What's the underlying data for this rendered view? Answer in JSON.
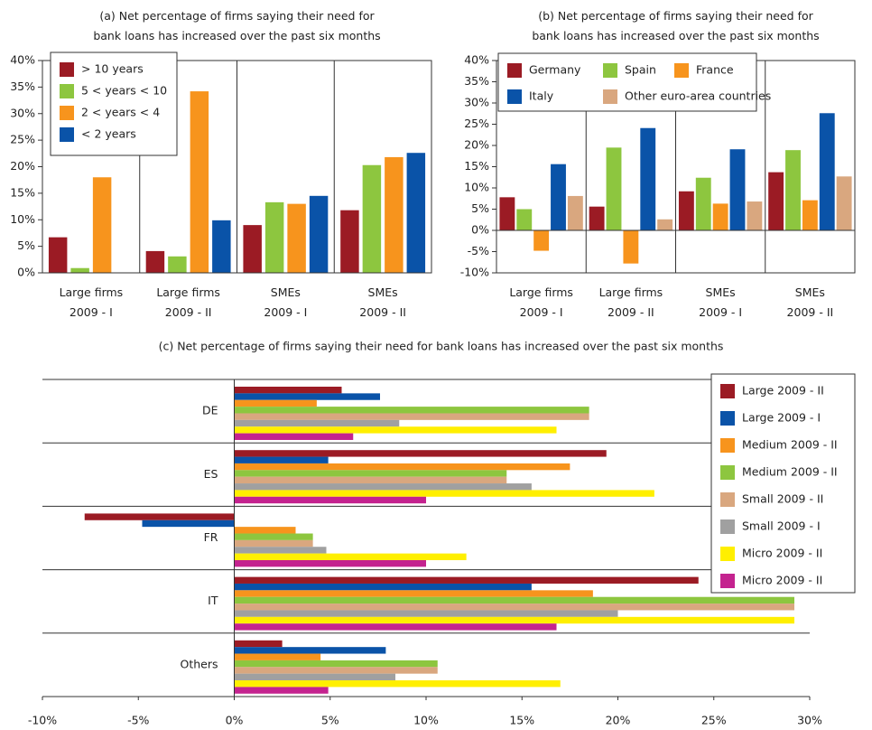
{
  "chart_data": [
    {
      "type": "bar",
      "title": "(a) Net percentage of firms saying their need for\nbank loans has increased over the past six months",
      "categories": [
        "Large firms\n2009 - I",
        "Large firms\n2009 - II",
        "SMEs\n2009 - I",
        "SMEs\n2009 - II"
      ],
      "series": [
        {
          "name": "> 10 years",
          "color": "#9b1b24",
          "values": [
            6.7,
            4.1,
            9.0,
            11.8
          ]
        },
        {
          "name": "5 < years < 10",
          "color": "#8dc63f",
          "values": [
            0.9,
            3.1,
            13.3,
            20.3
          ]
        },
        {
          "name": "2 < years < 4",
          "color": "#f7941d",
          "values": [
            18.0,
            34.2,
            13.0,
            21.8
          ]
        },
        {
          "name": "< 2 years",
          "color": "#0a53a8",
          "values": [
            0,
            9.9,
            14.5,
            22.6
          ]
        }
      ],
      "ylim": [
        0,
        40
      ],
      "yticks": [
        {
          "value": 0,
          "label": "0%"
        },
        {
          "value": 5,
          "label": "5%"
        },
        {
          "value": 10,
          "label": "10%"
        },
        {
          "value": 15,
          "label": "15%"
        },
        {
          "value": 20,
          "label": "20%"
        },
        {
          "value": 25,
          "label": "25%"
        },
        {
          "value": 30,
          "label": "30%"
        },
        {
          "value": 35,
          "label": "35%"
        },
        {
          "value": 40,
          "label": "40%"
        }
      ],
      "legend": "upper left"
    },
    {
      "type": "bar",
      "title": "(b) Net percentage of firms saying their need for\nbank loans has increased over the past six months",
      "categories": [
        "Large firms\n2009 - I",
        "Large firms\n2009 - II",
        "SMEs\n2009 - I",
        "SMEs\n2009 - II"
      ],
      "series": [
        {
          "name": "Germany",
          "color": "#9b1b24",
          "values": [
            7.8,
            5.6,
            9.2,
            13.7
          ]
        },
        {
          "name": "Spain",
          "color": "#8dc63f",
          "values": [
            5.0,
            19.5,
            12.4,
            18.9
          ]
        },
        {
          "name": "France",
          "color": "#f7941d",
          "values": [
            -4.8,
            -7.8,
            6.3,
            7.1
          ]
        },
        {
          "name": "Italy",
          "color": "#0a53a8",
          "values": [
            15.6,
            24.1,
            19.1,
            27.6
          ]
        },
        {
          "name": "Other euro-area countries",
          "color": "#d9a77f",
          "values": [
            8.1,
            2.6,
            6.8,
            12.7
          ]
        }
      ],
      "ylim": [
        -10,
        40
      ],
      "yticks": [
        {
          "value": -10,
          "label": "-10%"
        },
        {
          "value": -5,
          "label": "-5%"
        },
        {
          "value": 0,
          "label": "0%"
        },
        {
          "value": 5,
          "label": "5%"
        },
        {
          "value": 10,
          "label": "10%"
        },
        {
          "value": 15,
          "label": "15%"
        },
        {
          "value": 20,
          "label": "20%"
        },
        {
          "value": 25,
          "label": "25%"
        },
        {
          "value": 30,
          "label": "30%"
        },
        {
          "value": 35,
          "label": "35%"
        },
        {
          "value": 40,
          "label": "40%"
        }
      ],
      "legend": "upper left"
    },
    {
      "type": "hbar",
      "title": "(c) Net percentage of firms saying their need for bank loans has increased over the past six months",
      "categories": [
        "DE",
        "ES",
        "FR",
        "IT",
        "Others"
      ],
      "series": [
        {
          "name": "Large 2009 - II",
          "color": "#9b1b24",
          "values": [
            5.6,
            19.4,
            -7.8,
            24.2,
            2.5
          ]
        },
        {
          "name": "Large 2009 - I",
          "color": "#0a53a8",
          "values": [
            7.6,
            4.9,
            -4.8,
            15.5,
            7.9
          ]
        },
        {
          "name": "Medium 2009 - II",
          "color": "#f7941d",
          "values": [
            4.3,
            17.5,
            3.2,
            18.7,
            4.5
          ]
        },
        {
          "name": "Medium 2009 - II",
          "color": "#8dc63f",
          "values": [
            18.5,
            14.2,
            4.1,
            29.2,
            10.6
          ]
        },
        {
          "name": "Small 2009 - II",
          "color": "#d9a77f",
          "values": [
            18.5,
            14.2,
            4.1,
            29.2,
            10.6
          ]
        },
        {
          "name": "Small 2009 - I",
          "color": "#a0a0a0",
          "values": [
            8.6,
            15.5,
            4.8,
            20.0,
            8.4
          ]
        },
        {
          "name": "Micro 2009 - II",
          "color": "#ffef00",
          "values": [
            16.8,
            21.9,
            12.1,
            29.2,
            17.0
          ]
        },
        {
          "name": "Micro 2009 - II",
          "color": "#c4238f",
          "values": [
            6.2,
            10.0,
            10.0,
            16.8,
            4.9
          ]
        }
      ],
      "xlim": [
        -10,
        30
      ],
      "xticks": [
        {
          "value": -10,
          "label": "-10%"
        },
        {
          "value": -5,
          "label": "-5%"
        },
        {
          "value": 0,
          "label": "0%"
        },
        {
          "value": 5,
          "label": "5%"
        },
        {
          "value": 10,
          "label": "10%"
        },
        {
          "value": 15,
          "label": "15%"
        },
        {
          "value": 20,
          "label": "20%"
        },
        {
          "value": 25,
          "label": "25%"
        },
        {
          "value": 30,
          "label": "30%"
        }
      ],
      "legend": "upper right"
    }
  ]
}
